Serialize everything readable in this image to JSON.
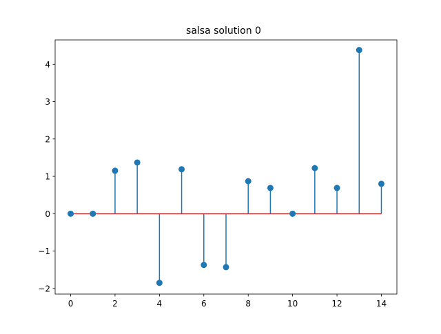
{
  "chart_data": {
    "type": "stem",
    "title": "salsa solution 0",
    "xlabel": "",
    "ylabel": "",
    "xlim": [
      -0.7,
      14.7
    ],
    "ylim": [
      -2.15,
      4.65
    ],
    "xticks": [
      0,
      2,
      4,
      6,
      8,
      10,
      12,
      14
    ],
    "yticks": [
      -2,
      -1,
      0,
      1,
      2,
      3,
      4
    ],
    "ytick_labels": [
      "−2",
      "−1",
      "0",
      "1",
      "2",
      "3",
      "4"
    ],
    "grid": false,
    "baseline": 0,
    "colors": {
      "stem": "#1f77b4",
      "marker": "#1f77b4",
      "baseline": "#d62728"
    },
    "x": [
      0,
      1,
      2,
      3,
      4,
      5,
      6,
      7,
      8,
      9,
      10,
      11,
      12,
      13,
      14
    ],
    "values": [
      0,
      0,
      1.15,
      1.37,
      -1.85,
      1.19,
      -1.37,
      -1.43,
      0.87,
      0.69,
      0,
      1.22,
      0.69,
      4.38,
      0.8
    ]
  }
}
